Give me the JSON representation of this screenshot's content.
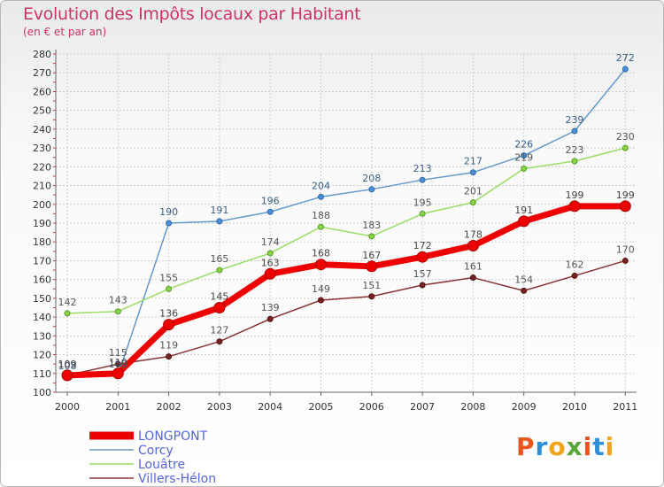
{
  "title": "Evolution des Impôts locaux par Habitant",
  "subtitle": "(en € et par an)",
  "logo": {
    "text": "Proxiti",
    "letters": [
      "P",
      "r",
      "o",
      "x",
      "i",
      "t",
      "i"
    ]
  },
  "chart_data": {
    "type": "line",
    "title": "Evolution des Impôts locaux par Habitant",
    "subtitle": "(en € et par an)",
    "xlabel": "",
    "ylabel": "",
    "ylim": [
      100,
      280
    ],
    "yticks": [
      100,
      110,
      120,
      130,
      140,
      150,
      160,
      170,
      180,
      190,
      200,
      210,
      220,
      230,
      240,
      250,
      260,
      270,
      280
    ],
    "x": [
      "2000",
      "2001",
      "2002",
      "2003",
      "2004",
      "2005",
      "2006",
      "2007",
      "2008",
      "2009",
      "2010",
      "2011"
    ],
    "legend_position": "bottom-left",
    "series": [
      {
        "name": "LONGPONT",
        "color": "#ee0000",
        "values": [
          109,
          110,
          136,
          145,
          163,
          168,
          167,
          172,
          178,
          191,
          199,
          199
        ],
        "labels": [
          "109",
          "110",
          "136",
          "145",
          "163",
          "168",
          "167",
          "172",
          "178",
          "191",
          "199",
          "199"
        ]
      },
      {
        "name": "Corcy",
        "color": "#6699cc",
        "values": [
          108,
          109,
          190,
          191,
          196,
          204,
          208,
          213,
          217,
          226,
          239,
          272
        ],
        "labels": [
          "108",
          "109",
          "190",
          "191",
          "196",
          "204",
          "208",
          "213",
          "217",
          "226",
          "239",
          "272"
        ]
      },
      {
        "name": "Louâtre",
        "color": "#99dd66",
        "values": [
          142,
          143,
          155,
          165,
          174,
          188,
          183,
          195,
          201,
          219,
          223,
          230
        ],
        "labels": [
          "142",
          "143",
          "155",
          "165",
          "174",
          "188",
          "183",
          "195",
          "201",
          "219",
          "223",
          "230"
        ]
      },
      {
        "name": "Villers-Hélon",
        "color": "#883333",
        "values": [
          109,
          115,
          119,
          127,
          139,
          149,
          151,
          157,
          161,
          154,
          162,
          170
        ],
        "labels": [
          "109",
          "115",
          "119",
          "127",
          "139",
          "149",
          "151",
          "157",
          "161",
          "154",
          "162",
          "170"
        ]
      }
    ]
  }
}
